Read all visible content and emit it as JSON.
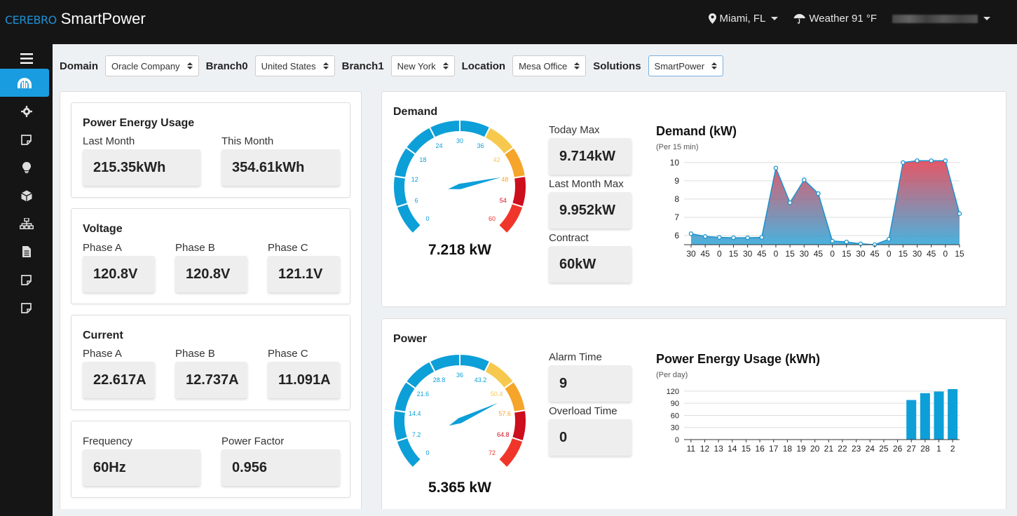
{
  "header": {
    "logo_text": "CEREBRO",
    "app_name": "SmartPower",
    "location": "Miami, FL",
    "weather": "Weather 91 °F"
  },
  "sidebar": {
    "icons": [
      "menu-icon",
      "dashboard-icon",
      "gear-icon",
      "note-icon",
      "bulb-icon",
      "cube-icon",
      "network-icon",
      "file-icon",
      "note-icon-2",
      "note-icon-3"
    ]
  },
  "filters": {
    "domain_label": "Domain",
    "domain_value": "Oracle Company",
    "branch0_label": "Branch0",
    "branch0_value": "United States",
    "branch1_label": "Branch1",
    "branch1_value": "New York",
    "location_label": "Location",
    "location_value": "Mesa Office",
    "solutions_label": "Solutions",
    "solutions_value": "SmartPower"
  },
  "energy": {
    "title": "Power Energy Usage",
    "last_month_label": "Last Month",
    "last_month_value": "215.35kWh",
    "this_month_label": "This Month",
    "this_month_value": "354.61kWh"
  },
  "voltage": {
    "title": "Voltage",
    "a_label": "Phase A",
    "a_value": "120.8V",
    "b_label": "Phase B",
    "b_value": "120.8V",
    "c_label": "Phase C",
    "c_value": "121.1V"
  },
  "current": {
    "title": "Current",
    "a_label": "Phase A",
    "a_value": "22.617A",
    "b_label": "Phase B",
    "b_value": "12.737A",
    "c_label": "Phase C",
    "c_value": "11.091A"
  },
  "misc": {
    "freq_label": "Frequency",
    "freq_value": "60Hz",
    "pf_label": "Power Factor",
    "pf_value": "0.956"
  },
  "demand": {
    "title": "Demand",
    "gauge_value": 7.218,
    "gauge_text": "7.218 kW",
    "gauge_max": 60,
    "gauge_ticks": [
      "0",
      "6",
      "12",
      "18",
      "24",
      "30",
      "36",
      "42",
      "48",
      "54",
      "60"
    ],
    "today_max_label": "Today Max",
    "today_max_value": "9.714kW",
    "last_month_max_label": "Last Month Max",
    "last_month_max_value": "9.952kW",
    "contract_label": "Contract",
    "contract_value": "60kW"
  },
  "power": {
    "title": "Power",
    "gauge_value": 5.365,
    "gauge_text": "5.365 kW",
    "gauge_max": 72,
    "gauge_ticks": [
      "0",
      "7.2",
      "14.4",
      "21.6",
      "28.8",
      "36",
      "43.2",
      "50.4",
      "57.6",
      "64.8",
      "72"
    ],
    "alarm_label": "Alarm Time",
    "alarm_value": "9",
    "overload_label": "Overload Time",
    "overload_value": "0"
  },
  "chart_data": [
    {
      "type": "area",
      "title": "Demand (kW)",
      "subtitle": "(Per 15 min)",
      "categories": [
        "30",
        "45",
        "0",
        "15",
        "30",
        "45",
        "0",
        "15",
        "30",
        "45",
        "0",
        "15",
        "30",
        "45",
        "0",
        "15",
        "30",
        "45",
        "0",
        "15"
      ],
      "values": [
        6.1,
        5.95,
        5.9,
        5.88,
        5.88,
        5.9,
        9.7,
        7.8,
        9.05,
        8.3,
        5.7,
        5.65,
        5.55,
        5.5,
        5.8,
        10.0,
        10.1,
        10.1,
        10.1,
        7.2
      ],
      "yticks": [
        6,
        7,
        8,
        9,
        10
      ],
      "ylim": [
        5.5,
        10.3
      ],
      "grid": true
    },
    {
      "type": "bar",
      "title": "Power Energy Usage (kWh)",
      "subtitle": "(Per day)",
      "categories": [
        "11",
        "12",
        "13",
        "14",
        "15",
        "16",
        "17",
        "18",
        "19",
        "20",
        "21",
        "22",
        "23",
        "24",
        "25",
        "26",
        "27",
        "28",
        "1",
        "2"
      ],
      "values": [
        0,
        0,
        0,
        0,
        0,
        0,
        0,
        0,
        0,
        0,
        0,
        0,
        0,
        0,
        0,
        0,
        98,
        115,
        119,
        125
      ],
      "yticks": [
        0,
        30,
        60,
        90,
        120
      ],
      "ylim": [
        0,
        125
      ],
      "grid": true
    }
  ]
}
